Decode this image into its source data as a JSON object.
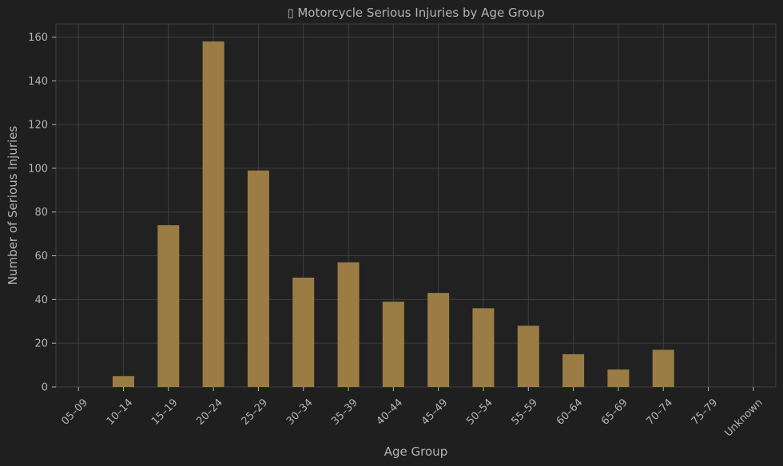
{
  "colors": {
    "background": "#1f1f1f",
    "plot_background": "#212121",
    "grid": "#3e3e3e",
    "bar": "#9a7c44",
    "text": "#b4b4b4"
  },
  "chart_data": {
    "type": "bar",
    "title": "▯ Motorcycle Serious Injuries by Age Group",
    "xlabel": "Age Group",
    "ylabel": "Number of Serious Injuries",
    "categories": [
      "05–09",
      "10–14",
      "15–19",
      "20–24",
      "25–29",
      "30–34",
      "35–39",
      "40–44",
      "45–49",
      "50–54",
      "55–59",
      "60–64",
      "65–69",
      "70–74",
      "75–79",
      "Unknown"
    ],
    "values": [
      0,
      5,
      74,
      158,
      99,
      50,
      57,
      39,
      43,
      36,
      28,
      15,
      8,
      17,
      0,
      0
    ],
    "ylim": [
      0,
      166
    ],
    "yticks": [
      0,
      20,
      40,
      60,
      80,
      100,
      120,
      140,
      160
    ],
    "grid": true,
    "legend": false
  }
}
